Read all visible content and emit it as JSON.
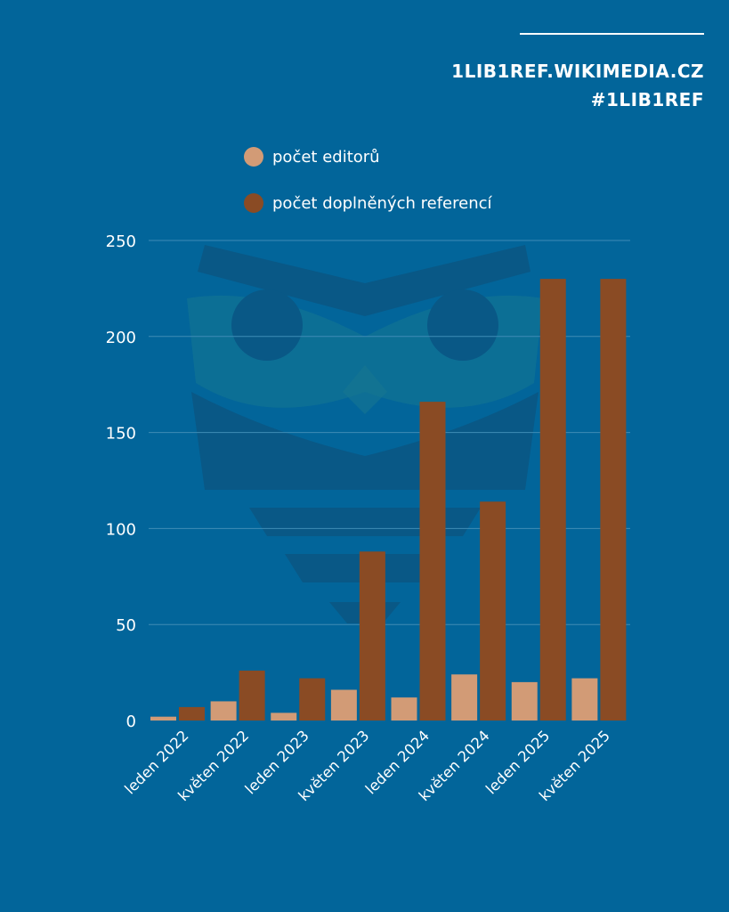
{
  "header": {
    "site": "1LIB1REF.WIKIMEDIA.CZ",
    "hashtag": "#1LIB1REF"
  },
  "colors": {
    "background": "#02659a",
    "editors": "#d29b76",
    "references": "#8a4b24",
    "grid": "#3f8cb5",
    "owl_watermark": "#0c5a87"
  },
  "chart_data": {
    "type": "bar",
    "categories": [
      "leden 2022",
      "květen 2022",
      "leden 2023",
      "květen 2023",
      "leden 2024",
      "květen 2024",
      "leden 2025",
      "květen 2025"
    ],
    "series": [
      {
        "name": "počet editorů",
        "values": [
          2,
          10,
          4,
          16,
          12,
          24,
          20,
          22
        ]
      },
      {
        "name": "počet doplněných referencí",
        "values": [
          7,
          26,
          22,
          88,
          166,
          114,
          230,
          230
        ]
      }
    ],
    "ylim": [
      0,
      250
    ],
    "yticks": [
      "0",
      "50",
      "100",
      "150",
      "200",
      "250"
    ],
    "grid": true,
    "legend_position": "top"
  }
}
